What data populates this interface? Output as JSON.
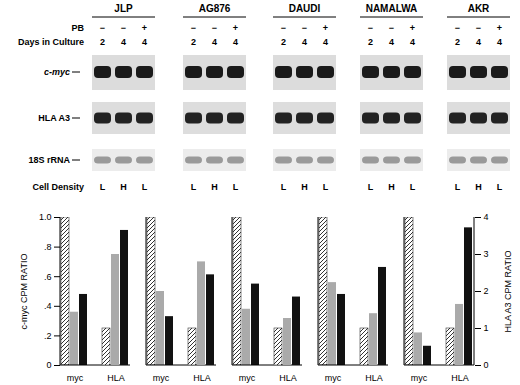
{
  "blot": {
    "cell_lines": [
      "JLP",
      "AG876",
      "DAUDI",
      "NAMALWA",
      "AKR"
    ],
    "lane_rows": [
      {
        "label": "PB",
        "values": [
          "−",
          "−",
          "+"
        ]
      },
      {
        "label": "Days in Culture",
        "values": [
          2,
          4,
          4
        ]
      }
    ],
    "blot_rows": [
      "c-myc",
      "HLA A3",
      "18S rRNA"
    ],
    "footer_row": {
      "label": "Cell Density",
      "values": [
        "L",
        "H",
        "L"
      ]
    }
  },
  "chart_data": [
    {
      "type": "bar",
      "categories": [
        "myc",
        "HLA"
      ],
      "ylim": [
        0,
        1
      ],
      "yticks": [
        0,
        {
          "value": 0.2,
          "label": ".2"
        },
        {
          "value": 0.4,
          "label": ".4"
        },
        {
          "value": 0.6,
          "label": ".6"
        },
        {
          "value": 0.8,
          "label": ".8"
        },
        {
          "value": 1,
          "label": "1.0"
        }
      ],
      "ylabel": "c-myc CPM RATIO",
      "y2lim": [
        0,
        4
      ],
      "series": [
        {
          "color": "#333333",
          "line_style": "hatched",
          "values": [
            1.0,
            null
          ]
        },
        {
          "color": "#aaaaaa",
          "values": [
            0.36,
            null
          ]
        },
        {
          "color": "#111111",
          "values": [
            0.48,
            null
          ]
        },
        {
          "color": "#333333",
          "line_style": "hatched",
          "axis": "y2",
          "values": [
            null,
            1.0
          ]
        },
        {
          "color": "#aaaaaa",
          "axis": "y2",
          "values": [
            null,
            3.0
          ]
        },
        {
          "color": "#111111",
          "axis": "y2",
          "values": [
            null,
            3.65
          ]
        }
      ]
    },
    {
      "type": "bar",
      "categories": [
        "myc",
        "HLA"
      ],
      "ylim": [
        0,
        1
      ],
      "y2lim": [
        0,
        4
      ],
      "series": [
        {
          "color": "#333333",
          "line_style": "hatched",
          "values": [
            1.0,
            null
          ]
        },
        {
          "color": "#aaaaaa",
          "values": [
            0.5,
            null
          ]
        },
        {
          "color": "#111111",
          "values": [
            0.33,
            null
          ]
        },
        {
          "color": "#333333",
          "line_style": "hatched",
          "axis": "y2",
          "values": [
            null,
            1.0
          ]
        },
        {
          "color": "#aaaaaa",
          "axis": "y2",
          "values": [
            null,
            2.8
          ]
        },
        {
          "color": "#111111",
          "axis": "y2",
          "values": [
            null,
            2.45
          ]
        }
      ]
    },
    {
      "type": "bar",
      "categories": [
        "myc",
        "HLA"
      ],
      "ylim": [
        0,
        1
      ],
      "y2lim": [
        0,
        4
      ],
      "series": [
        {
          "color": "#333333",
          "line_style": "hatched",
          "values": [
            1.0,
            null
          ]
        },
        {
          "color": "#aaaaaa",
          "values": [
            0.38,
            null
          ]
        },
        {
          "color": "#111111",
          "values": [
            0.55,
            null
          ]
        },
        {
          "color": "#333333",
          "line_style": "hatched",
          "axis": "y2",
          "values": [
            null,
            1.0
          ]
        },
        {
          "color": "#aaaaaa",
          "axis": "y2",
          "values": [
            null,
            1.27
          ]
        },
        {
          "color": "#111111",
          "axis": "y2",
          "values": [
            null,
            1.85
          ]
        }
      ]
    },
    {
      "type": "bar",
      "categories": [
        "myc",
        "HLA"
      ],
      "ylim": [
        0,
        1
      ],
      "y2lim": [
        0,
        4
      ],
      "series": [
        {
          "color": "#333333",
          "line_style": "hatched",
          "values": [
            1.0,
            null
          ]
        },
        {
          "color": "#aaaaaa",
          "values": [
            0.56,
            null
          ]
        },
        {
          "color": "#111111",
          "values": [
            0.48,
            null
          ]
        },
        {
          "color": "#333333",
          "line_style": "hatched",
          "axis": "y2",
          "values": [
            null,
            1.0
          ]
        },
        {
          "color": "#aaaaaa",
          "axis": "y2",
          "values": [
            null,
            1.4
          ]
        },
        {
          "color": "#111111",
          "axis": "y2",
          "values": [
            null,
            2.65
          ]
        }
      ]
    },
    {
      "type": "bar",
      "categories": [
        "myc",
        "HLA"
      ],
      "ylim": [
        0,
        1
      ],
      "y2lim": [
        0,
        4
      ],
      "y2ticks": [
        0,
        1,
        2,
        3,
        4
      ],
      "y2label": "HLA A3 CPM RATIO",
      "series": [
        {
          "color": "#333333",
          "line_style": "hatched",
          "values": [
            1.0,
            null
          ]
        },
        {
          "color": "#aaaaaa",
          "values": [
            0.22,
            null
          ]
        },
        {
          "color": "#111111",
          "values": [
            0.13,
            null
          ]
        },
        {
          "color": "#333333",
          "line_style": "hatched",
          "axis": "y2",
          "values": [
            null,
            1.0
          ]
        },
        {
          "color": "#aaaaaa",
          "axis": "y2",
          "values": [
            null,
            1.65
          ]
        },
        {
          "color": "#111111",
          "axis": "y2",
          "values": [
            null,
            3.72
          ]
        }
      ]
    }
  ]
}
